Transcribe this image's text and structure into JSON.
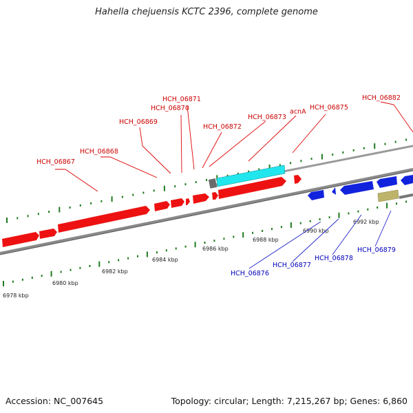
{
  "title": "Hahella chejuensis KCTC 2396, complete genome",
  "footer": {
    "accession": "Accession: NC_007645",
    "summary": "Topology: circular; Length: 7,215,267 bp; Genes: 6,860"
  },
  "colors": {
    "forward_gene": "#ee1111",
    "reverse_gene": "#1122dd",
    "cyan_feature": "#22e6ee",
    "olive_feature": "#bdb36a",
    "gray_feature": "#6a6a6a",
    "backbone": "#8a8a8a",
    "tick_green": "#1f7a1f",
    "label_red": "#cc0000",
    "label_blue": "#0000bb"
  },
  "chart_data": {
    "type": "genome-map",
    "axis_ticks": [
      {
        "label": "6978 kbp",
        "kbp": 6978
      },
      {
        "label": "6980 kbp",
        "kbp": 6980
      },
      {
        "label": "6982 kbp",
        "kbp": 6982
      },
      {
        "label": "6984 kbp",
        "kbp": 6984
      },
      {
        "label": "6986 kbp",
        "kbp": 6986
      },
      {
        "label": "6988 kbp",
        "kbp": 6988
      },
      {
        "label": "6990 kbp",
        "kbp": 6990
      },
      {
        "label": "6992 kbp",
        "kbp": 6992
      }
    ],
    "forward_labels": [
      "HCH_06867",
      "HCH_06868",
      "HCH_06869",
      "HCH_06870",
      "HCH_06871",
      "HCH_06872",
      "HCH_06873",
      "acnA",
      "HCH_06875",
      "HCH_06882"
    ],
    "reverse_labels": [
      "HCH_06876",
      "HCH_06877",
      "HCH_06878",
      "HCH_06879"
    ]
  }
}
